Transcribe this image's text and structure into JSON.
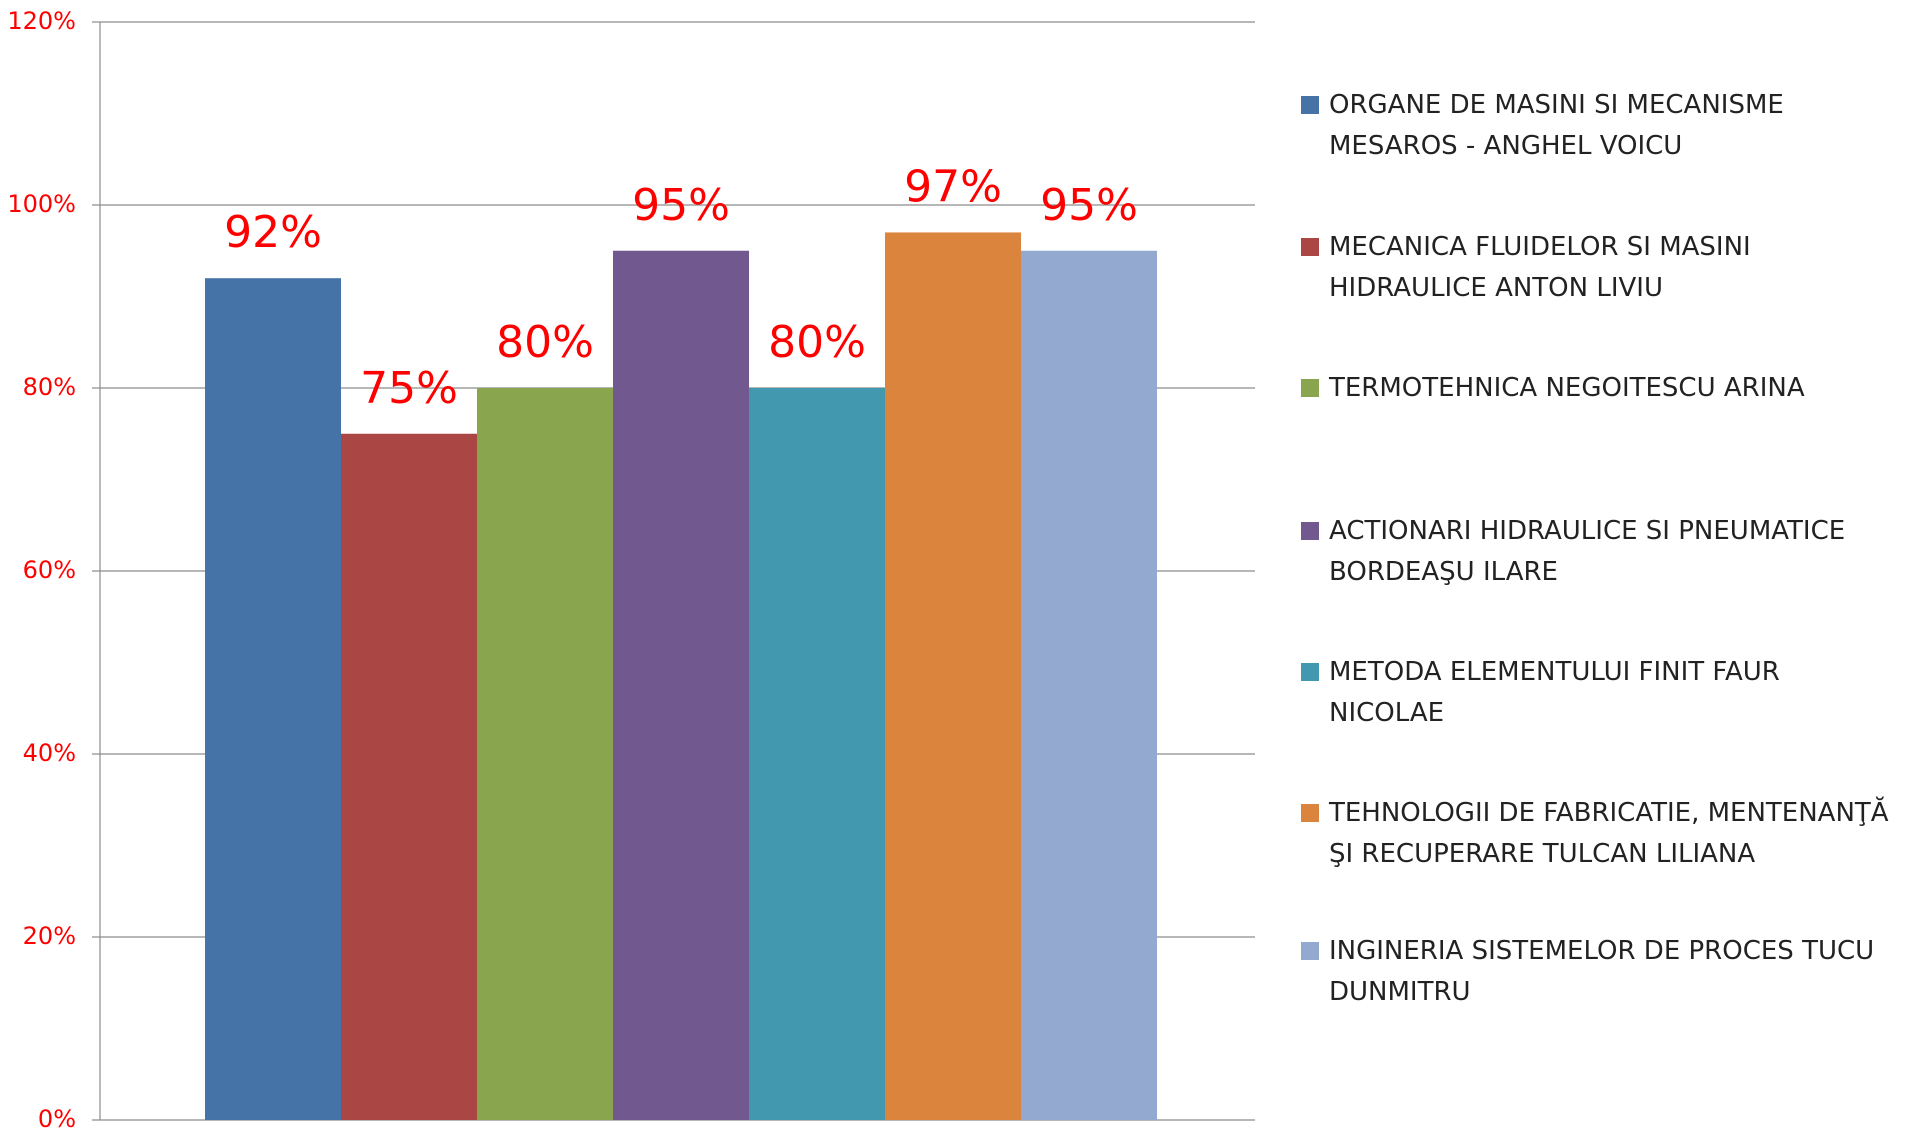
{
  "chart_data": {
    "type": "bar",
    "categories": [
      null
    ],
    "series": [
      {
        "name": "ORGANE DE MASINI SI MECANISME MESAROS - ANGHEL VOICU",
        "color": "#4572a7",
        "values": [
          92
        ],
        "value_labels": [
          "92%"
        ]
      },
      {
        "name": "MECANICA FLUIDELOR SI MASINI HIDRAULICE ANTON LIVIU",
        "color": "#aa4643",
        "values": [
          75
        ],
        "value_labels": [
          "75%"
        ]
      },
      {
        "name": "TERMOTEHNICA NEGOITESCU ARINA",
        "color": "#89a54e",
        "values": [
          80
        ],
        "value_labels": [
          "80%"
        ]
      },
      {
        "name": "ACTIONARI HIDRAULICE SI PNEUMATICE BORDEAŞU ILARE",
        "color": "#71588f",
        "values": [
          95
        ],
        "value_labels": [
          "95%"
        ]
      },
      {
        "name": "METODA ELEMENTULUI FINIT FAUR NICOLAE",
        "color": "#4198af",
        "values": [
          80
        ],
        "value_labels": [
          "80%"
        ]
      },
      {
        "name": "TEHNOLOGII DE FABRICATIE, MENTENANŢĂ ŞI RECUPERARE TULCAN LILIANA",
        "color": "#db843d",
        "values": [
          97
        ],
        "value_labels": [
          "97%"
        ]
      },
      {
        "name": "INGINERIA SISTEMELOR DE PROCES TUCU DUNMITRU",
        "color": "#93a9cf",
        "values": [
          95
        ],
        "value_labels": [
          "95%"
        ]
      }
    ],
    "ylim": [
      0,
      120
    ],
    "yticks": [
      {
        "value": 0,
        "label": "0%"
      },
      {
        "value": 20,
        "label": "20%"
      },
      {
        "value": 40,
        "label": "40%"
      },
      {
        "value": 60,
        "label": "60%"
      },
      {
        "value": 80,
        "label": "80%"
      },
      {
        "value": 100,
        "label": "100%"
      },
      {
        "value": 120,
        "label": "120%"
      }
    ],
    "grid": true,
    "legend": "right"
  }
}
